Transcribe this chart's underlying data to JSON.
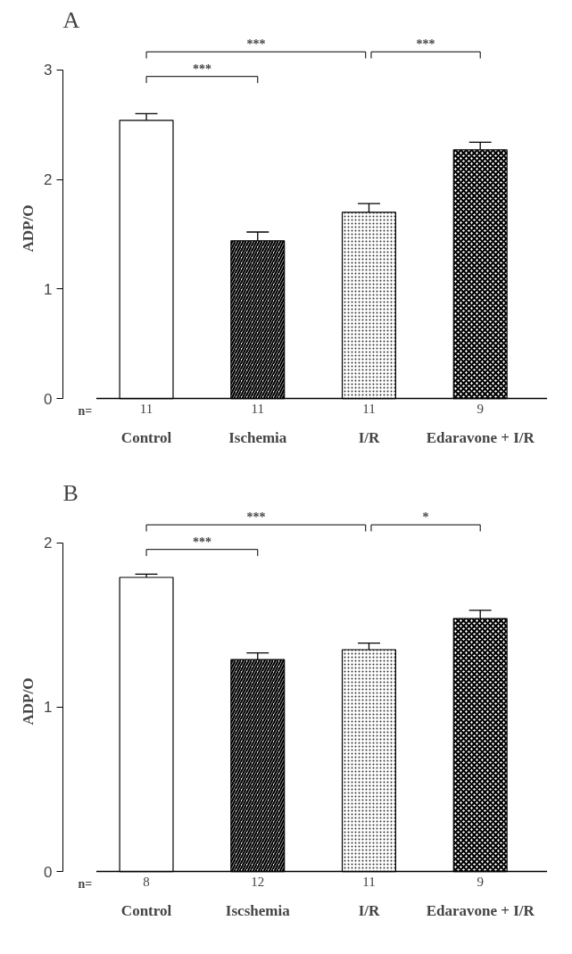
{
  "chart_data": [
    {
      "type": "bar",
      "title": "A",
      "ylabel": "ADP/O",
      "categories": [
        "Control",
        "Ischemia",
        "I/R",
        "Edaravone + I/R"
      ],
      "values": [
        2.54,
        1.44,
        1.7,
        2.27
      ],
      "colors": [
        "#ffffff",
        "#000000",
        "#ffffff",
        "#000000"
      ],
      "errors": [
        [
          2.54,
          2.6
        ],
        [
          1.44,
          1.52
        ],
        [
          1.7,
          1.78
        ],
        [
          2.27,
          2.34
        ]
      ],
      "ylim": [
        0,
        3
      ],
      "yticks": [
        0,
        1,
        2,
        3
      ],
      "grid": false,
      "annotations": [
        "***",
        "***",
        "***",
        "n=",
        "11",
        "11",
        "11",
        "9"
      ]
    },
    {
      "type": "bar",
      "title": "B",
      "ylabel": "ADP/O",
      "categories": [
        "Control",
        "Iscshemia",
        "I/R",
        "Edaravone + I/R"
      ],
      "values": [
        1.79,
        1.29,
        1.35,
        1.54
      ],
      "colors": [
        "#ffffff",
        "#000000",
        "#ffffff",
        "#000000"
      ],
      "errors": [
        [
          1.79,
          1.81
        ],
        [
          1.29,
          1.33
        ],
        [
          1.35,
          1.39
        ],
        [
          1.54,
          1.59
        ]
      ],
      "ylim": [
        0,
        2
      ],
      "yticks": [
        0,
        1,
        2
      ],
      "grid": false,
      "annotations": [
        "***",
        "***",
        "*",
        "n=",
        "8",
        "12",
        "11",
        "9"
      ]
    }
  ]
}
